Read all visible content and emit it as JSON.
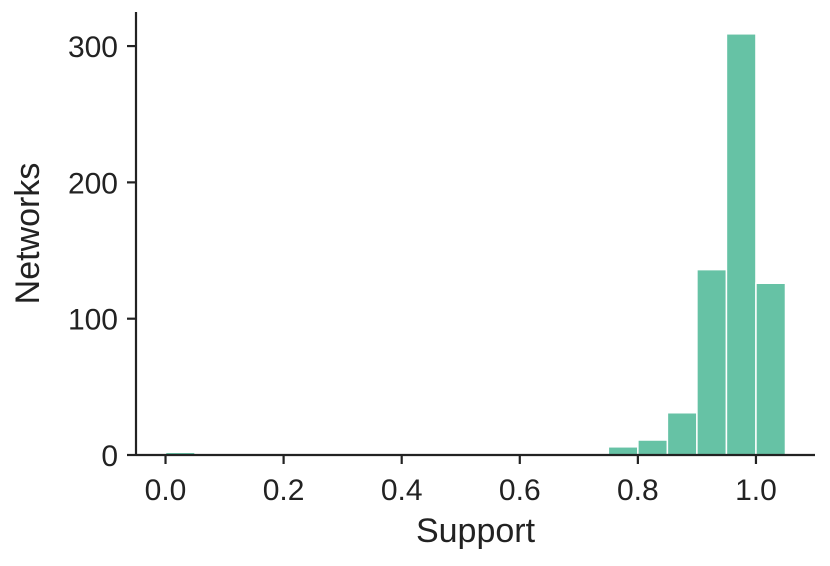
{
  "chart_data": {
    "type": "bar",
    "title": "",
    "xlabel": "Support",
    "ylabel": "Networks",
    "xlim": [
      -0.05,
      1.1
    ],
    "ylim": [
      0,
      325
    ],
    "xticks": [
      0.0,
      0.2,
      0.4,
      0.6,
      0.8,
      1.0
    ],
    "xtick_labels": [
      "0.0",
      "0.2",
      "0.4",
      "0.6",
      "0.8",
      "1.0"
    ],
    "yticks": [
      0,
      100,
      200,
      300
    ],
    "ytick_labels": [
      "0",
      "100",
      "200",
      "300"
    ],
    "grid": false,
    "legend": "none",
    "bar_color": "#66c2a5",
    "bins": [
      {
        "x0": 0.0,
        "x1": 0.05,
        "value": 2
      },
      {
        "x0": 0.7,
        "x1": 0.75,
        "value": 1
      },
      {
        "x0": 0.75,
        "x1": 0.8,
        "value": 6
      },
      {
        "x0": 0.8,
        "x1": 0.85,
        "value": 11
      },
      {
        "x0": 0.85,
        "x1": 0.9,
        "value": 31
      },
      {
        "x0": 0.9,
        "x1": 0.95,
        "value": 136
      },
      {
        "x0": 0.95,
        "x1": 1.0,
        "value": 309
      },
      {
        "x0": 1.0,
        "x1": 1.05,
        "value": 126
      }
    ]
  }
}
